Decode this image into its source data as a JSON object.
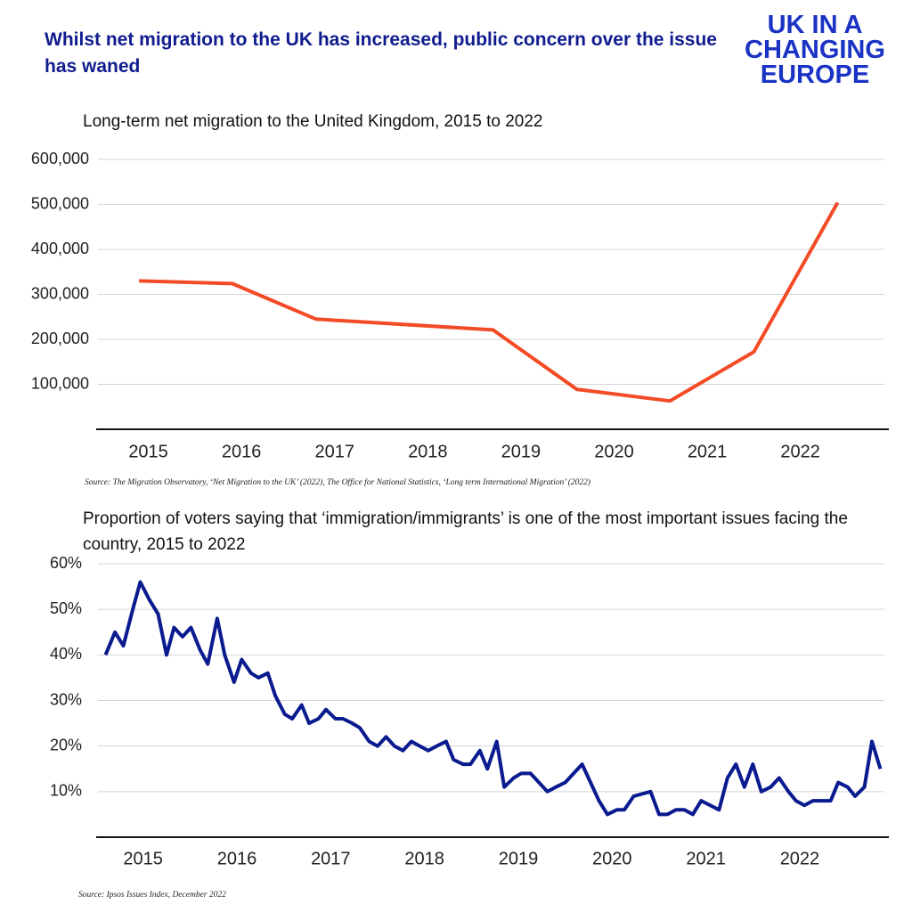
{
  "title": "Whilst net migration to the UK has increased, public concern over the issue has waned",
  "logo": [
    "UK IN A",
    "CHANGING",
    "EUROPE"
  ],
  "chart_data": [
    {
      "type": "line",
      "title": "Long-term net migration to the United Kingdom, 2015 to 2022",
      "source": "Source: The Migration Observatory, ‘Net Migration to the UK’ (2022), The Office for National Statistics, ‘Long term International Migration’ (2022)",
      "x": [
        2014.9,
        2015.9,
        2016.8,
        2018.7,
        2019.6,
        2020.6,
        2021.5,
        2022.4
      ],
      "series": [
        {
          "color": "#f24b26",
          "values": [
            330000,
            324000,
            245000,
            221000,
            89000,
            63000,
            172000,
            504000
          ]
        }
      ],
      "xlim": [
        2014.44,
        2022.95
      ],
      "xticks": [
        2015,
        2016,
        2017,
        2018,
        2019,
        2020,
        2021,
        2022
      ],
      "ylim": [
        0,
        600000
      ],
      "yticks": [
        {
          "value": 100000,
          "label": "100,000"
        },
        {
          "value": 200000,
          "label": "200,000"
        },
        {
          "value": 300000,
          "label": "300,000"
        },
        {
          "value": 400000,
          "label": "400,000"
        },
        {
          "value": 500000,
          "label": "500,000"
        },
        {
          "value": 600000,
          "label": "600,000"
        }
      ],
      "grid": true
    },
    {
      "type": "line",
      "title": "Proportion of voters saying that ‘immigration/immigrants’ is one of the most important issues facing the country, 2015 to 2022",
      "source": "Source: Ipsos Issues Index, December 2022",
      "x": [
        2014.6,
        2014.7,
        2014.79,
        2014.89,
        2014.97,
        2015.07,
        2015.16,
        2015.25,
        2015.33,
        2015.42,
        2015.51,
        2015.61,
        2015.69,
        2015.79,
        2015.87,
        2015.97,
        2016.05,
        2016.15,
        2016.23,
        2016.33,
        2016.41,
        2016.51,
        2016.59,
        2016.69,
        2016.77,
        2016.87,
        2016.95,
        2017.05,
        2017.13,
        2017.23,
        2017.31,
        2017.41,
        2017.5,
        2017.59,
        2017.68,
        2017.77,
        2017.86,
        2017.95,
        2018.04,
        2018.13,
        2018.23,
        2018.31,
        2018.41,
        2018.49,
        2018.59,
        2018.67,
        2018.77,
        2018.85,
        2018.95,
        2019.03,
        2019.13,
        2019.31,
        2019.4,
        2019.5,
        2019.68,
        2019.77,
        2019.86,
        2019.95,
        2020.05,
        2020.13,
        2020.23,
        2020.41,
        2020.5,
        2020.59,
        2020.68,
        2020.77,
        2020.86,
        2020.95,
        2021.14,
        2021.23,
        2021.32,
        2021.41,
        2021.5,
        2021.59,
        2021.69,
        2021.78,
        2021.88,
        2021.96,
        2022.05,
        2022.14,
        2022.23,
        2022.33,
        2022.41,
        2022.51,
        2022.59,
        2022.69,
        2022.77,
        2022.86
      ],
      "series": [
        {
          "color": "#0a1a8f",
          "values": [
            40,
            45,
            42,
            50,
            56,
            52,
            49,
            40,
            46,
            44,
            46,
            41,
            38,
            48,
            40,
            34,
            39,
            36,
            35,
            36,
            31,
            27,
            26,
            29,
            25,
            26,
            28,
            26,
            26,
            25,
            24,
            21,
            20,
            22,
            20,
            19,
            21,
            20,
            19,
            20,
            21,
            17,
            16,
            16,
            19,
            15,
            21,
            11,
            13,
            14,
            14,
            10,
            11,
            12,
            16,
            12,
            8,
            5,
            6,
            6,
            9,
            10,
            5,
            5,
            6,
            6,
            5,
            8,
            6,
            13,
            16,
            11,
            16,
            10,
            11,
            13,
            10,
            8,
            7,
            8,
            8,
            8,
            12,
            11,
            9,
            11,
            21,
            15
          ]
        }
      ],
      "xlim": [
        2014.5,
        2022.95
      ],
      "xticks": [
        2015,
        2016,
        2017,
        2018,
        2019,
        2020,
        2021,
        2022
      ],
      "ylim": [
        0,
        60
      ],
      "yticks": [
        {
          "value": 10,
          "label": "10%"
        },
        {
          "value": 20,
          "label": "20%"
        },
        {
          "value": 30,
          "label": "30%"
        },
        {
          "value": 40,
          "label": "40%"
        },
        {
          "value": 50,
          "label": "50%"
        },
        {
          "value": 60,
          "label": "60%"
        }
      ],
      "grid": true
    }
  ]
}
